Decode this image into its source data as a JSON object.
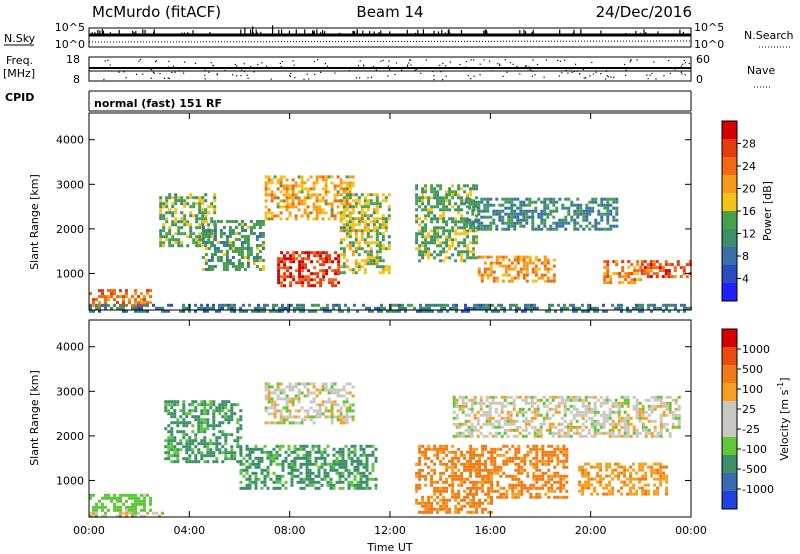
{
  "header": {
    "station": "McMurdo (fitACF)",
    "beam": "Beam 14",
    "date": "24/Dec/2016"
  },
  "noise_panel": {
    "left_label": "N.Sky",
    "left_ticks": [
      "10^5",
      "10^0"
    ],
    "right_label": "N.Search",
    "right_ticks": [
      "10^5",
      "10^0"
    ]
  },
  "freq_panel": {
    "label_line1": "Freq.",
    "label_line2": "[MHz]",
    "left_ticks": [
      "18",
      "8"
    ],
    "right_label": "Nave",
    "right_ticks": [
      "60",
      "0"
    ]
  },
  "cpid_panel": {
    "label": "CPID",
    "text": "normal (fast) 151 RF"
  },
  "colors": {
    "power_scale": [
      "#1f1fff",
      "#2a4cc0",
      "#3a70a8",
      "#3d8f6a",
      "#4aa04a",
      "#f5c21a",
      "#f59a1a",
      "#f06a14",
      "#e83a10",
      "#d40000"
    ],
    "velocity_scale": [
      "#2040e0",
      "#3a6ab0",
      "#3d8f6a",
      "#5ec83a",
      "#c8c8c0",
      "#c8c8c0",
      "#f5a020",
      "#f07a14",
      "#e84a10",
      "#d40000"
    ]
  },
  "chart_data": [
    {
      "type": "heatmap",
      "quantity": "Power",
      "ylabel": "Slant Range [km]",
      "xlabel": "",
      "x_ticks": [
        "00:00",
        "04:00",
        "08:00",
        "12:00",
        "16:00",
        "20:00",
        "00:00"
      ],
      "xlim_hours": [
        0,
        24
      ],
      "y_ticks": [
        "1000",
        "2000",
        "3000",
        "4000"
      ],
      "ylim": [
        180,
        4600
      ],
      "colorbar_label": "Power [dB]",
      "colorbar_ticks": [
        "28",
        "24",
        "20",
        "16",
        "12",
        "8",
        "4"
      ],
      "colorbar_range": [
        0,
        30
      ],
      "regions": [
        {
          "t0": 0.0,
          "t1": 2.5,
          "r0": 300,
          "r1": 650,
          "value": 22
        },
        {
          "t0": 0.0,
          "t1": 24.0,
          "r0": 180,
          "r1": 320,
          "value": 9
        },
        {
          "t0": 2.8,
          "t1": 5.0,
          "r0": 1600,
          "r1": 2800,
          "value": 13
        },
        {
          "t0": 4.5,
          "t1": 7.0,
          "r0": 1100,
          "r1": 2200,
          "value": 12
        },
        {
          "t0": 7.0,
          "t1": 10.5,
          "r0": 2200,
          "r1": 3200,
          "value": 18
        },
        {
          "t0": 7.5,
          "t1": 10.0,
          "r0": 700,
          "r1": 1500,
          "value": 26
        },
        {
          "t0": 10.0,
          "t1": 12.0,
          "r0": 1000,
          "r1": 2800,
          "value": 15
        },
        {
          "t0": 13.0,
          "t1": 15.5,
          "r0": 1300,
          "r1": 3000,
          "value": 13
        },
        {
          "t0": 15.5,
          "t1": 18.5,
          "r0": 800,
          "r1": 1400,
          "value": 20
        },
        {
          "t0": 15.0,
          "t1": 21.0,
          "r0": 2000,
          "r1": 2700,
          "value": 10
        },
        {
          "t0": 20.5,
          "t1": 22.0,
          "r0": 800,
          "r1": 1300,
          "value": 21
        },
        {
          "t0": 22.0,
          "t1": 24.0,
          "r0": 900,
          "r1": 1300,
          "value": 24
        }
      ]
    },
    {
      "type": "heatmap",
      "quantity": "Velocity",
      "ylabel": "Slant Range [km]",
      "xlabel": "Time UT",
      "x_ticks": [
        "00:00",
        "04:00",
        "08:00",
        "12:00",
        "16:00",
        "20:00",
        "00:00"
      ],
      "xlim_hours": [
        0,
        24
      ],
      "y_ticks": [
        "1000",
        "2000",
        "3000",
        "4000"
      ],
      "ylim": [
        180,
        4600
      ],
      "colorbar_label": "Velocity [m s",
      "colorbar_label_sup": "-1",
      "colorbar_label_end": "]",
      "colorbar_ticks": [
        "1000",
        "500",
        "100",
        "25",
        "-25",
        "-100",
        "-500",
        "-1000"
      ],
      "regions": [
        {
          "t0": 0.0,
          "t1": 2.5,
          "r0": 300,
          "r1": 700,
          "value": 150
        },
        {
          "t0": 0.0,
          "t1": 3.0,
          "r0": 180,
          "r1": 300,
          "value": 0
        },
        {
          "t0": 3.0,
          "t1": 6.0,
          "r0": 1400,
          "r1": 2800,
          "value": 300
        },
        {
          "t0": 6.0,
          "t1": 11.5,
          "r0": 800,
          "r1": 1800,
          "value": 300
        },
        {
          "t0": 7.0,
          "t1": 10.5,
          "r0": 2300,
          "r1": 3200,
          "value": 0
        },
        {
          "t0": 13.0,
          "t1": 16.0,
          "r0": 300,
          "r1": 1800,
          "value": -300
        },
        {
          "t0": 16.0,
          "t1": 19.0,
          "r0": 600,
          "r1": 1800,
          "value": -300
        },
        {
          "t0": 14.5,
          "t1": 23.5,
          "r0": 2000,
          "r1": 2900,
          "value": 0
        },
        {
          "t0": 19.5,
          "t1": 23.0,
          "r0": 700,
          "r1": 1400,
          "value": -200
        }
      ]
    }
  ]
}
